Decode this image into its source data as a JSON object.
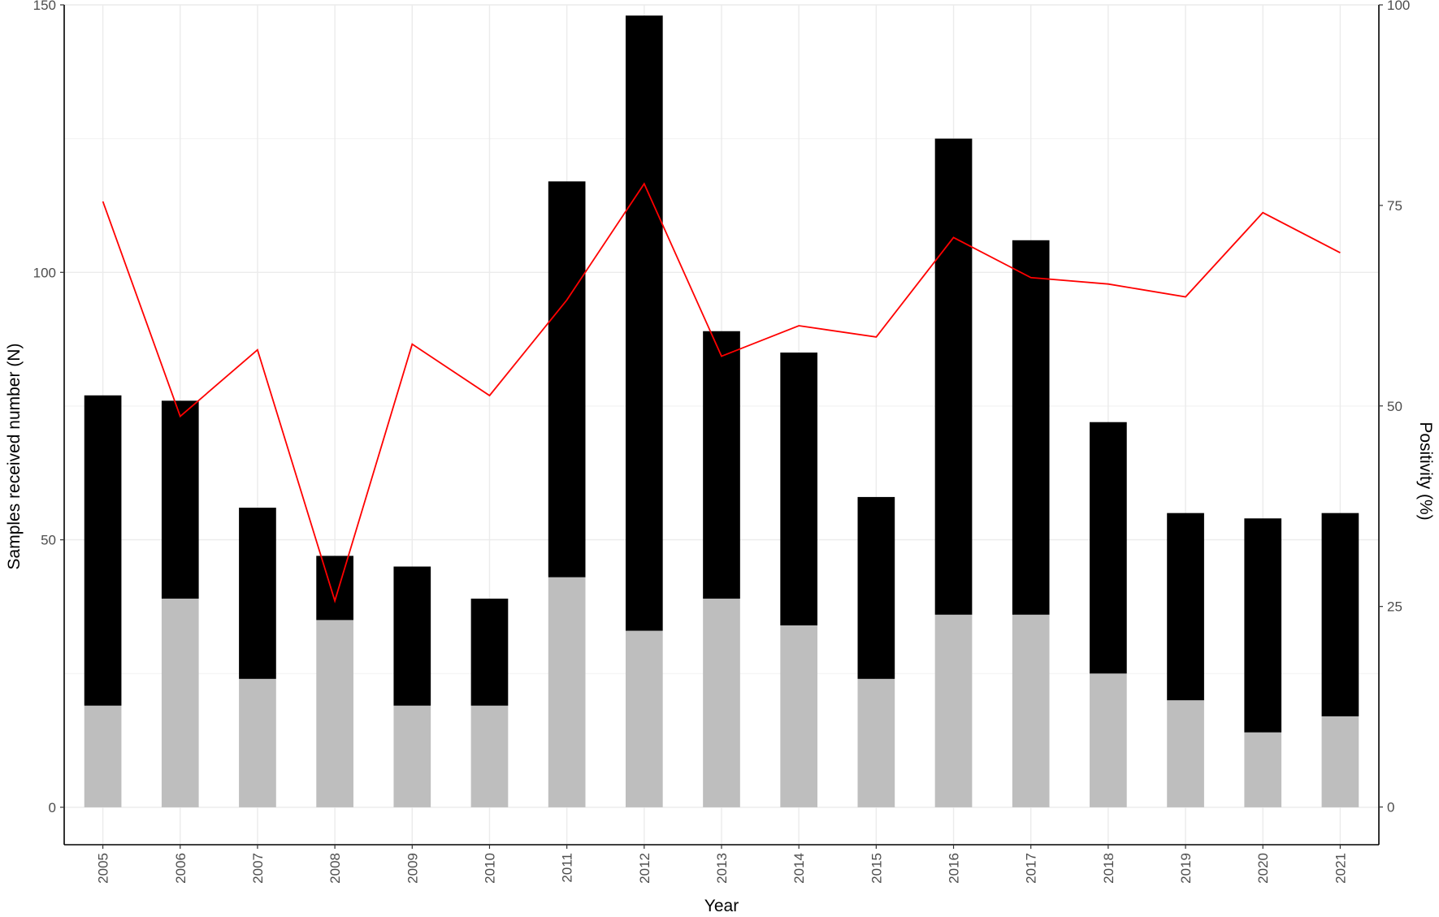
{
  "chart_data": {
    "type": "bar",
    "stacked": true,
    "xlabel": "Year",
    "ylabel": "Samples received number (N)",
    "y2label": "Positivity (%)",
    "categories": [
      "2005",
      "2006",
      "2007",
      "2008",
      "2009",
      "2010",
      "2011",
      "2012",
      "2013",
      "2014",
      "2015",
      "2016",
      "2017",
      "2018",
      "2019",
      "2020",
      "2021"
    ],
    "ylim": [
      -7,
      150
    ],
    "yticks": [
      0,
      50,
      100,
      150
    ],
    "y2lim": [
      -4.7,
      100
    ],
    "y2ticks": [
      0,
      25,
      50,
      75,
      100
    ],
    "grid": true,
    "series": [
      {
        "kind": "bar",
        "color": "#bebebe",
        "values": [
          19,
          39,
          24,
          35,
          19,
          19,
          43,
          33,
          39,
          34,
          24,
          36,
          36,
          25,
          20,
          14,
          17
        ]
      },
      {
        "kind": "bar",
        "color": "#000000",
        "values": [
          58,
          37,
          32,
          12,
          26,
          20,
          74,
          115,
          50,
          51,
          34,
          89,
          70,
          47,
          35,
          40,
          38
        ]
      },
      {
        "kind": "line",
        "axis": "y2",
        "color": "#ff0000",
        "values": [
          75.5,
          48.7,
          57.0,
          25.7,
          57.7,
          51.3,
          63.2,
          77.7,
          56.2,
          60.0,
          58.6,
          71.0,
          66.0,
          65.2,
          63.6,
          74.1,
          69.1
        ]
      }
    ]
  }
}
